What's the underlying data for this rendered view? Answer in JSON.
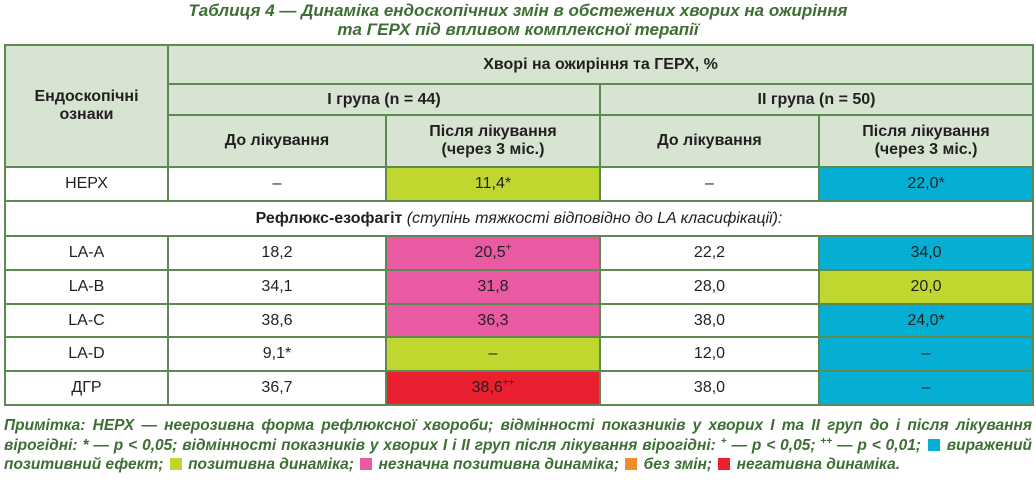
{
  "caption": {
    "line1": "Таблиця 4 — Динаміка ендоскопічних змін в обстежених хворих на ожиріння",
    "line2": "та ГЕРХ під впливом комплексної терапії"
  },
  "header": {
    "signs": "Ендоскопічні ознаки",
    "patients": "Хворі на ожиріння та ГЕРХ, %",
    "group1": "I група (n = 44)",
    "group2": "II група (n = 50)",
    "before": "До лікування",
    "after_line1": "Після лікування",
    "after_line2": "(через 3 міс.)"
  },
  "colors": {
    "lime": "#c0d72f",
    "cyan": "#05aed3",
    "pink": "#ea5aa3",
    "red": "#ea2030",
    "orange": "#f08a2a",
    "header_bg": "#d7e4d2",
    "text_green": "#3d6e33"
  },
  "nerd_row": {
    "label": "НЕРХ",
    "g1_before": "–",
    "g1_after": "11,4*",
    "g2_before": "–",
    "g2_after": "22,0*"
  },
  "section": {
    "bold": "Рефлюкс-езофагіт",
    "italic": " (ступінь тяжкості відповідно до LA класифікації):"
  },
  "rows": [
    {
      "label": "LA-A",
      "g1_before": "18,2",
      "g1_after": "20,5",
      "g1_after_sup": "+",
      "g2_before": "22,2",
      "g2_after": "34,0",
      "g2_after_sup": ""
    },
    {
      "label": "LA-B",
      "g1_before": "34,1",
      "g1_after": "31,8",
      "g1_after_sup": "",
      "g2_before": "28,0",
      "g2_after": "20,0",
      "g2_after_sup": ""
    },
    {
      "label": "LA-C",
      "g1_before": "38,6",
      "g1_after": "36,3",
      "g1_after_sup": "",
      "g2_before": "38,0",
      "g2_after": "24,0*",
      "g2_after_sup": ""
    },
    {
      "label": "LA-D",
      "g1_before": "9,1*",
      "g1_after": "–",
      "g1_after_sup": "",
      "g2_before": "12,0",
      "g2_after": "–",
      "g2_after_sup": ""
    },
    {
      "label": "ДГР",
      "g1_before": "36,7",
      "g1_after": "38,6",
      "g1_after_sup": "++",
      "g2_before": "38,0",
      "g2_after": "–",
      "g2_after_sup": ""
    }
  ],
  "note": {
    "p1": "Примітка: НЕРХ — неерозивна форма рефлюксної хвороби; відмінності показників у хворих I та II груп до і після лікування вірогідні: * — p < 0,05; відмінності показників у хворих I і II груп після лікування вірогідні: ",
    "sup1": "+",
    "p2": " — p < 0,05; ",
    "sup2": "++",
    "p3": " — p < 0,01; ",
    "legend_cyan": " виражений позитивний ефект; ",
    "legend_lime": " позитивна динаміка; ",
    "legend_pink": " незначна позитивна динаміка; ",
    "legend_orange": " без змін; ",
    "legend_red": " негативна динаміка."
  }
}
